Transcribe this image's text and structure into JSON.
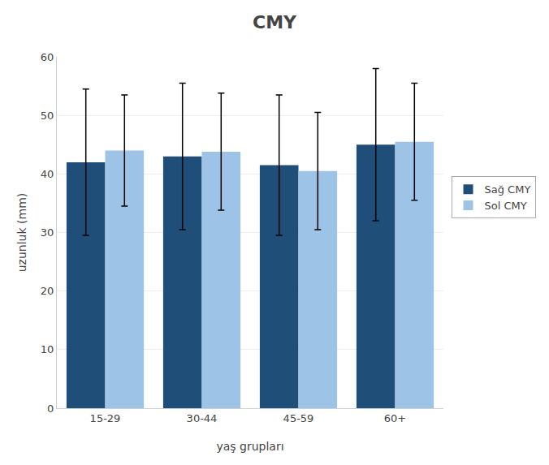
{
  "chart_data": {
    "type": "bar",
    "title": "CMY",
    "xlabel": "yaş grupları",
    "ylabel": "uzunluk (mm)",
    "categories": [
      "15-29",
      "30-44",
      "45-59",
      "60+"
    ],
    "series": [
      {
        "name": "Sağ CMY",
        "color": "#1F4E79",
        "values": [
          42.0,
          43.0,
          41.5,
          45.0
        ],
        "errors": [
          12.5,
          12.5,
          12.0,
          13.0
        ]
      },
      {
        "name": "Sol CMY",
        "color": "#9DC3E6",
        "values": [
          44.0,
          43.8,
          40.5,
          45.5
        ],
        "errors": [
          9.5,
          10.0,
          10.0,
          10.0
        ]
      }
    ],
    "ylim": [
      0,
      60
    ],
    "yticks": [
      0,
      10,
      20,
      30,
      40,
      50,
      60
    ],
    "grid": true,
    "legend": "right"
  }
}
